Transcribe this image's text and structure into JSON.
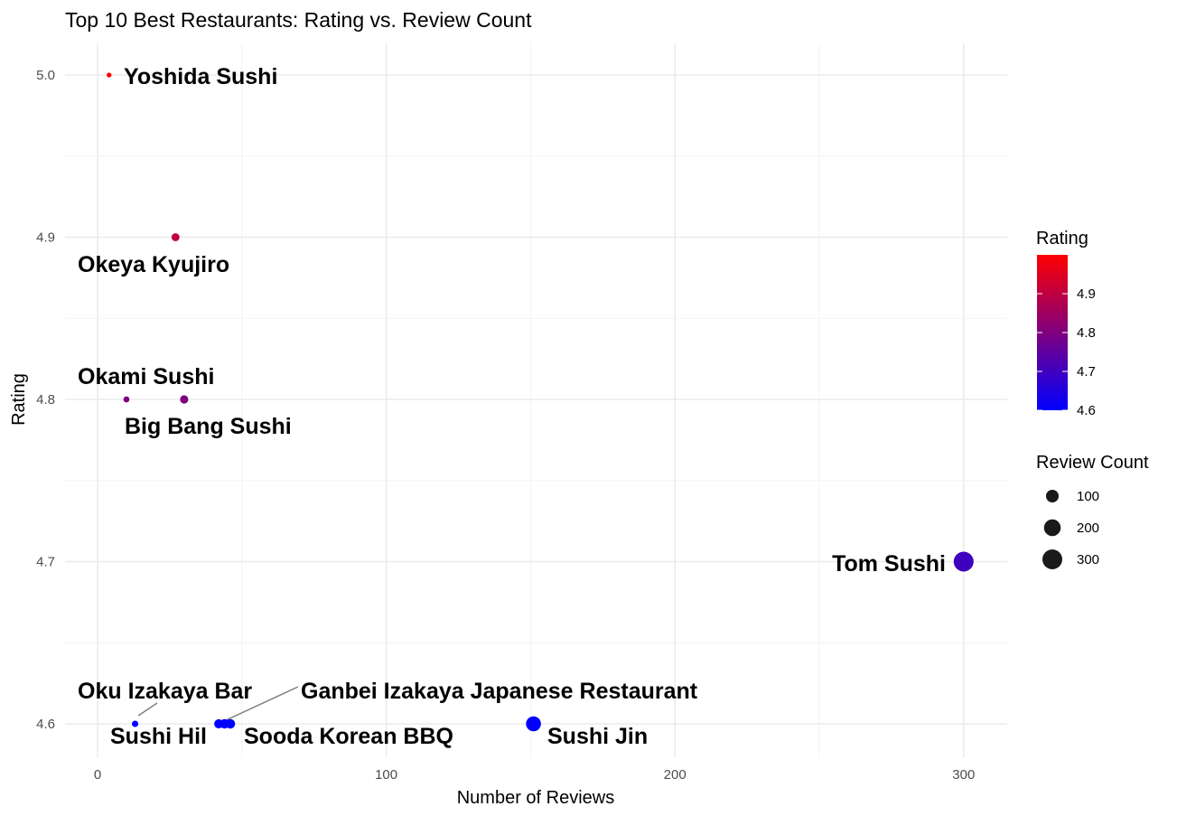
{
  "chart_data": {
    "type": "scatter",
    "title": "Top 10 Best Restaurants: Rating vs. Review Count",
    "xlabel": "Number of Reviews",
    "ylabel": "Rating",
    "xlim": [
      -10,
      315
    ],
    "ylim": [
      4.583,
      5.017
    ],
    "x_ticks": [
      0,
      100,
      200,
      300
    ],
    "y_ticks": [
      4.6,
      4.7,
      4.8,
      4.9,
      5.0
    ],
    "y_tick_labels": [
      "4.6",
      "4.7",
      "4.8",
      "4.9",
      "5.0"
    ],
    "grid": true,
    "points": [
      {
        "label": "Yoshida Sushi",
        "x": 4,
        "y": 5.0
      },
      {
        "label": "Okeya Kyujiro",
        "x": 27,
        "y": 4.9
      },
      {
        "label": "Okami Sushi",
        "x": 10,
        "y": 4.8
      },
      {
        "label": "Big Bang Sushi",
        "x": 30,
        "y": 4.8
      },
      {
        "label": "Tom Sushi",
        "x": 300,
        "y": 4.7
      },
      {
        "label": "Oku Izakaya Bar",
        "x": 13,
        "y": 4.6
      },
      {
        "label": "Sushi Hil",
        "x": 42,
        "y": 4.6
      },
      {
        "label": "Ganbei Izakaya Japanese Restaurant",
        "x": 44,
        "y": 4.6
      },
      {
        "label": "Sooda Korean BBQ",
        "x": 46,
        "y": 4.6
      },
      {
        "label": "Sushi Jin",
        "x": 151,
        "y": 4.6
      }
    ],
    "color_scale": {
      "low": "#0000ff",
      "high": "#ff0000",
      "domain": [
        4.6,
        5.0
      ]
    },
    "legend_position": "right",
    "legend_color": {
      "title": "Rating",
      "ticks": [
        4.6,
        4.7,
        4.8,
        4.9
      ],
      "tick_labels": [
        "4.6",
        "4.7",
        "4.8",
        "4.9"
      ]
    },
    "legend_size": {
      "title": "Review Count",
      "items": [
        {
          "value": 100,
          "label": "100"
        },
        {
          "value": 200,
          "label": "200"
        },
        {
          "value": 300,
          "label": "300"
        }
      ]
    }
  }
}
